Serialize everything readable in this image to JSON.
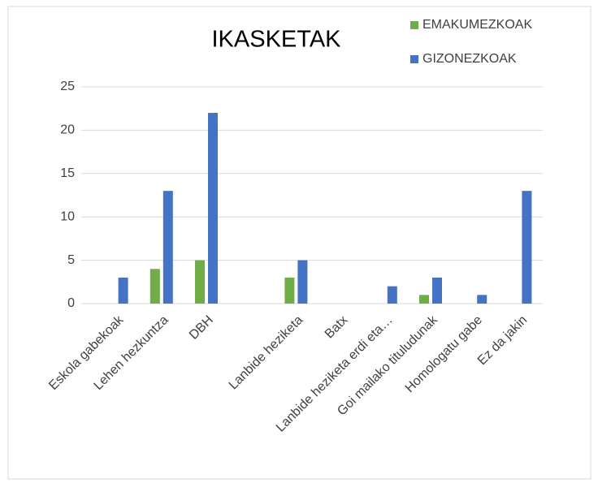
{
  "chart_data": {
    "type": "bar",
    "title": "IKASKETAK",
    "categories": [
      "Eskola gabekoak",
      "Lehen hezkuntza",
      "DBH",
      null,
      "Lanbide heziketa",
      "Batx",
      "Lanbide heziketa erdi eta…",
      "Goi mailako tituludunak",
      "Homologatu gabe",
      "Ez da jakin"
    ],
    "series": [
      {
        "name": "EMAKUMEZKOAK",
        "color": "#70ad47",
        "values": [
          0,
          4,
          5,
          0,
          3,
          0,
          0,
          1,
          0,
          0
        ]
      },
      {
        "name": "GIZONEZKOAK",
        "color": "#4472c4",
        "values": [
          3,
          13,
          22,
          0,
          5,
          0,
          2,
          3,
          1,
          13
        ]
      }
    ],
    "ylim": [
      0,
      25
    ],
    "yticks": [
      0,
      5,
      10,
      15,
      20,
      25
    ],
    "grid": true,
    "legend": "top-right"
  }
}
